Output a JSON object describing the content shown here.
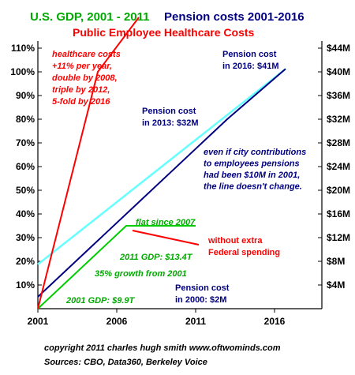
{
  "chart_data": {
    "type": "line",
    "titles": {
      "gdp": "U.S. GDP, 2001 - 2011",
      "pension": "Pension costs 2001-2016",
      "healthcare": "Public Employee Healthcare Costs"
    },
    "x_ticks": [
      "2001",
      "2006",
      "2011",
      "2016"
    ],
    "xlim": [
      2001,
      2019
    ],
    "left_ticks": [
      "10%",
      "20%",
      "30%",
      "40%",
      "50%",
      "60%",
      "70%",
      "80%",
      "90%",
      "100%",
      "110%"
    ],
    "ylim_left": [
      0,
      113
    ],
    "right_ticks": [
      "$4M",
      "$8M",
      "$12M",
      "$16M",
      "$20M",
      "$24M",
      "$28M",
      "$32M",
      "$36M",
      "$40M",
      "$44M"
    ],
    "ylim_right": [
      0,
      45.2
    ],
    "series": [
      {
        "key": "healthcare",
        "color": "#ff0000",
        "axis": "left",
        "points": [
          [
            2001,
            0
          ],
          [
            2004.8,
            100
          ],
          [
            2007.4,
            123
          ]
        ]
      },
      {
        "key": "gdp",
        "color": "#00cc00",
        "axis": "left",
        "points": [
          [
            2001,
            0
          ],
          [
            2006.6,
            35
          ],
          [
            2007,
            35
          ],
          [
            2011,
            35
          ]
        ]
      },
      {
        "key": "pension",
        "color": "#000080",
        "axis": "right",
        "points": [
          [
            2001,
            2
          ],
          [
            2013,
            32
          ],
          [
            2016.7,
            40.5
          ]
        ]
      },
      {
        "key": "pension_alt",
        "color": "#66ffff",
        "axis": "right",
        "points": [
          [
            2001,
            7.5
          ],
          [
            2016.7,
            40.5
          ]
        ]
      },
      {
        "key": "federal",
        "color": "#ff0000",
        "axis": "left",
        "points": [
          [
            2007,
            33
          ],
          [
            2011.2,
            27
          ]
        ]
      }
    ],
    "annotations": [
      {
        "key": "healthcare_note",
        "color": "#ff0000",
        "italic": true,
        "lines": [
          "healthcare costs",
          "+11% per year,",
          "double by 2008,",
          "triple by 2012,",
          "5-fold by 2016"
        ]
      },
      {
        "key": "pension_2016",
        "color": "#000080",
        "italic": false,
        "lines": [
          "Pension cost",
          "in 2016: $41M"
        ]
      },
      {
        "key": "pension_2013",
        "color": "#000080",
        "italic": false,
        "lines": [
          "Pension cost",
          "in 2013: $32M"
        ]
      },
      {
        "key": "contributions_note",
        "color": "#000080",
        "italic": true,
        "lines": [
          "even if city contributions",
          "to employees pensions",
          "had been $10M in 2001,",
          "the line doesn't change."
        ]
      },
      {
        "key": "flat_note",
        "color": "#00aa00",
        "italic": true,
        "lines": [
          "flat since 2007"
        ]
      },
      {
        "key": "federal_note",
        "color": "#ff0000",
        "italic": false,
        "lines": [
          "without extra",
          "Federal spending"
        ]
      },
      {
        "key": "gdp_2011",
        "color": "#00aa00",
        "italic": true,
        "lines": [
          "2011 GDP: $13.4T"
        ]
      },
      {
        "key": "growth_note",
        "color": "#00aa00",
        "italic": true,
        "lines": [
          "35% growth from 2001"
        ]
      },
      {
        "key": "pension_2000",
        "color": "#000080",
        "italic": false,
        "lines": [
          "Pension cost",
          "in 2000: $2M"
        ]
      },
      {
        "key": "gdp_2001",
        "color": "#00aa00",
        "italic": true,
        "lines": [
          "2001 GDP: $9.9T"
        ]
      }
    ],
    "footer": [
      "copyright 2011 charles hugh smith    www.oftwominds.com",
      "Sources: CBO, Data360, Berkeley Voice"
    ]
  }
}
